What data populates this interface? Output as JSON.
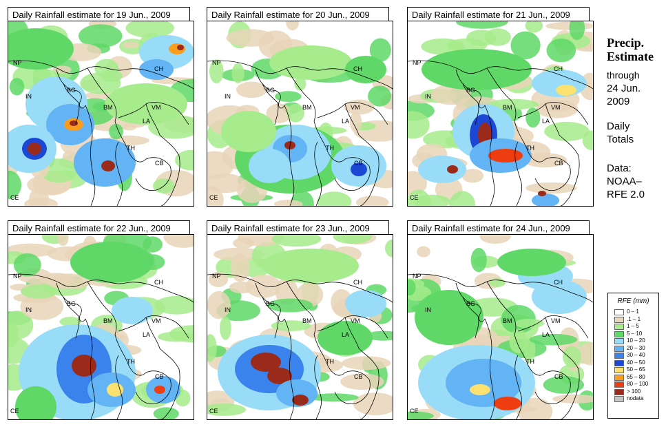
{
  "panels": [
    {
      "title": "Daily Rainfall estimate for  19 Jun., 2009",
      "day": "19"
    },
    {
      "title": "Daily Rainfall estimate for  20 Jun., 2009",
      "day": "20"
    },
    {
      "title": "Daily Rainfall estimate for  21 Jun., 2009",
      "day": "21"
    },
    {
      "title": "Daily Rainfall estimate for  22 Jun., 2009",
      "day": "22"
    },
    {
      "title": "Daily Rainfall estimate for  23 Jun., 2009",
      "day": "23"
    },
    {
      "title": "Daily Rainfall estimate for  24 Jun., 2009",
      "day": "24"
    }
  ],
  "map_labels": {
    "np": "NP",
    "in": "IN",
    "bg": "BG",
    "bm": "BM",
    "ch": "CH",
    "vm": "VM",
    "la": "LA",
    "th": "TH",
    "cb": "CB",
    "ce": "CE"
  },
  "side": {
    "title1": "Precip.",
    "title2": "Estimate",
    "through": "through",
    "date1": "24 Jun.",
    "date2": "2009",
    "daily1": "Daily",
    "daily2": "Totals",
    "data1": "Data:",
    "data2": "NOAA–",
    "data3": "RFE 2.0"
  },
  "legend": {
    "title": "RFE (mm)",
    "items": [
      {
        "label": "0 – 1",
        "color": "#ffffff"
      },
      {
        "label": ".1 – 1",
        "color": "#e9d5b8"
      },
      {
        "label": "1 – 5",
        "color": "#a6eb8c"
      },
      {
        "label": "5 – 10",
        "color": "#5fd867"
      },
      {
        "label": "10 – 20",
        "color": "#98dcf8"
      },
      {
        "label": "20 – 30",
        "color": "#62b4f5"
      },
      {
        "label": "30 – 40",
        "color": "#3a83ec"
      },
      {
        "label": "40 – 50",
        "color": "#1d48d6"
      },
      {
        "label": "50 – 65",
        "color": "#fbe170"
      },
      {
        "label": "65 – 80",
        "color": "#fa9d1d"
      },
      {
        "label": "80 – 100",
        "color": "#ee3d10"
      },
      {
        "label": "> 100",
        "color": "#9a2a1a"
      },
      {
        "label": "nodata",
        "color": "#c6c6c6"
      }
    ]
  }
}
